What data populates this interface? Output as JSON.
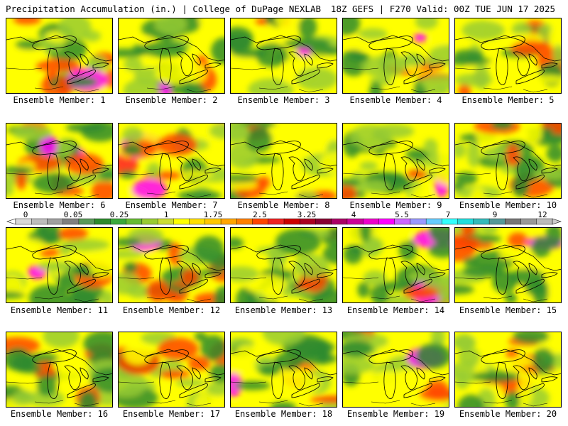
{
  "header": {
    "left": "Precipitation Accumulation (in.) | College of DuPage NEXLAB",
    "right": "18Z GEFS | F270 Valid: 00Z TUE JUN 17 2025"
  },
  "label_prefix": "Ensemble Member: ",
  "members": [
    {
      "id": 1,
      "label": "Ensemble Member: 1"
    },
    {
      "id": 2,
      "label": "Ensemble Member: 2"
    },
    {
      "id": 3,
      "label": "Ensemble Member: 3"
    },
    {
      "id": 4,
      "label": "Ensemble Member: 4"
    },
    {
      "id": 5,
      "label": "Ensemble Member: 5"
    },
    {
      "id": 6,
      "label": "Ensemble Member: 6"
    },
    {
      "id": 7,
      "label": "Ensemble Member: 7"
    },
    {
      "id": 8,
      "label": "Ensemble Member: 8"
    },
    {
      "id": 9,
      "label": "Ensemble Member: 9"
    },
    {
      "id": 10,
      "label": "Ensemble Member: 10"
    },
    {
      "id": 11,
      "label": "Ensemble Member: 11"
    },
    {
      "id": 12,
      "label": "Ensemble Member: 12"
    },
    {
      "id": 13,
      "label": "Ensemble Member: 13"
    },
    {
      "id": 14,
      "label": "Ensemble Member: 14"
    },
    {
      "id": 15,
      "label": "Ensemble Member: 15"
    },
    {
      "id": 16,
      "label": "Ensemble Member: 16"
    },
    {
      "id": 17,
      "label": "Ensemble Member: 17"
    },
    {
      "id": 18,
      "label": "Ensemble Member: 18"
    },
    {
      "id": 19,
      "label": "Ensemble Member: 19"
    },
    {
      "id": 20,
      "label": "Ensemble Member: 20"
    }
  ],
  "colorbar": {
    "tick_labels": [
      "0",
      "0.05",
      "0.25",
      "1",
      "1.75",
      "2.5",
      "3.25",
      "4",
      "5.5",
      "7",
      "9",
      "12"
    ],
    "colors": [
      "#d9d9d9",
      "#bdbdbd",
      "#a0a0a0",
      "#7f7f7f",
      "#5a9a5a",
      "#2e8b2e",
      "#3aa83a",
      "#66bb33",
      "#99cc33",
      "#ccdd33",
      "#ffff00",
      "#ffe000",
      "#ffc800",
      "#ffa500",
      "#ff7f00",
      "#ff4500",
      "#ee2222",
      "#cc0000",
      "#aa0022",
      "#880033",
      "#aa0066",
      "#cc0099",
      "#ee00cc",
      "#ff00ff",
      "#cc66ff",
      "#9999ff",
      "#66ccff",
      "#33ffff",
      "#22dddd",
      "#33bbbb",
      "#559999",
      "#777777",
      "#999999",
      "#bbbbbb"
    ]
  },
  "palette": {
    "dry": "#2e8b2e",
    "light": "#99cc33",
    "moderate": "#ffff00",
    "heavy": "#ff4500",
    "extreme": "#ff00ff",
    "map_lines": "#000000"
  }
}
